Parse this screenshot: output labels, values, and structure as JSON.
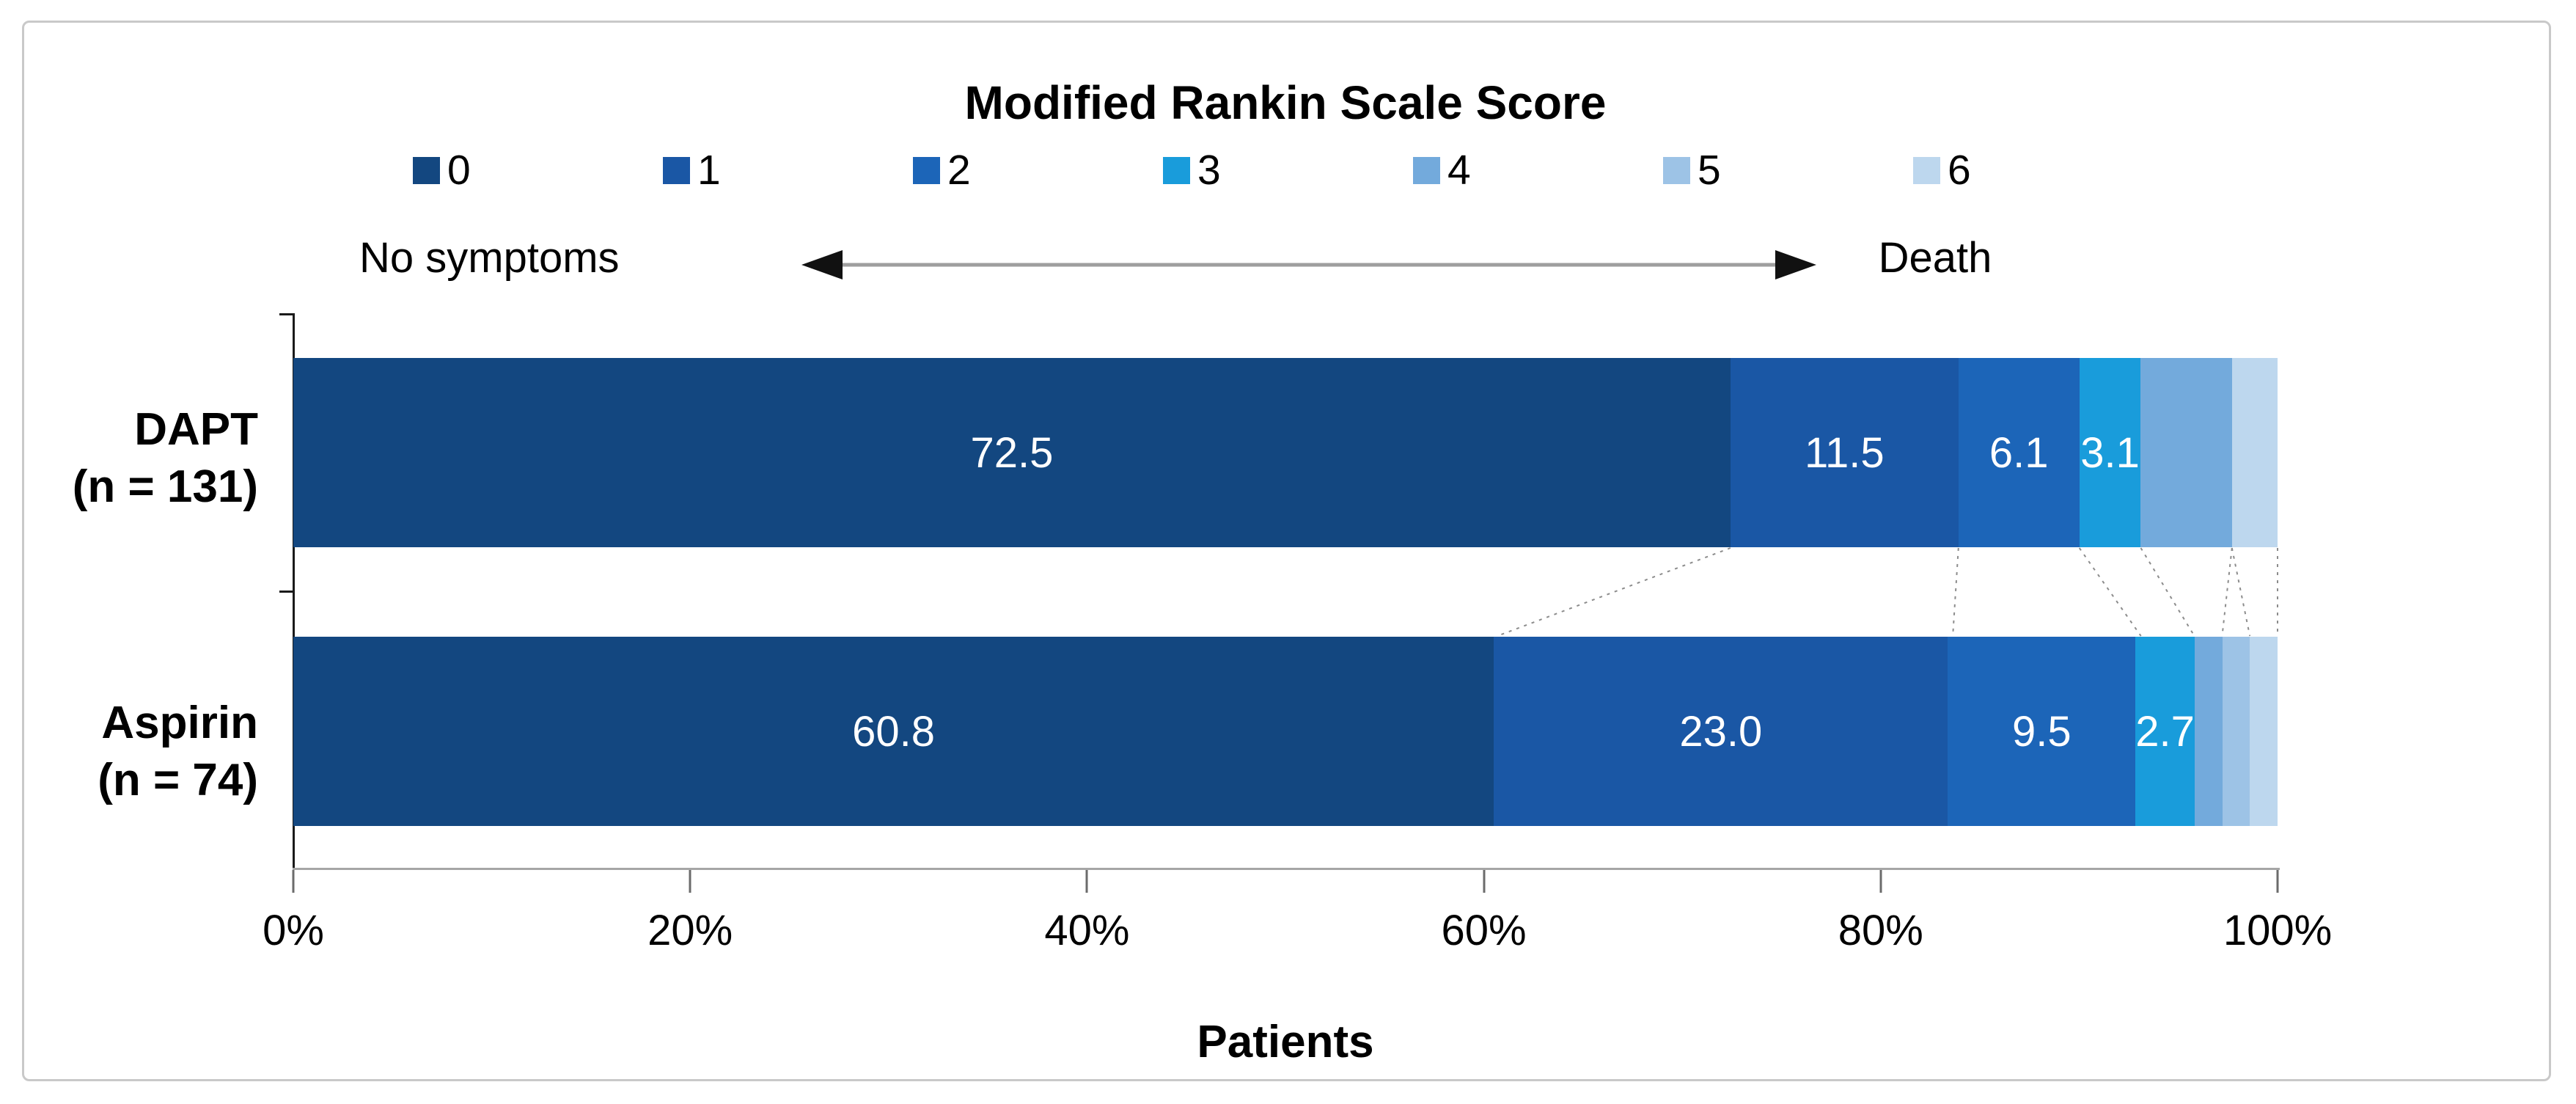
{
  "chart_data": {
    "type": "bar",
    "variant": "horizontal-stacked-100pct",
    "title": "Modified Rankin Scale Score",
    "xlabel": "Patients",
    "xlim": [
      0,
      100
    ],
    "x_ticks": [
      "0%",
      "20%",
      "40%",
      "60%",
      "80%",
      "100%"
    ],
    "grid": "off",
    "legend_position": "top",
    "annotation": {
      "left": "No symptoms",
      "right": "Death"
    },
    "categories": [
      {
        "line1": "DAPT",
        "line2": "(n = 131)"
      },
      {
        "line1": "Aspirin",
        "line2": "(n = 74)"
      }
    ],
    "series": [
      {
        "name": "0",
        "color": "#134780",
        "values": [
          72.5,
          60.8
        ],
        "labels": [
          "72.5",
          "60.8"
        ]
      },
      {
        "name": "1",
        "color": "#1A57A5",
        "values": [
          11.5,
          23.0
        ],
        "labels": [
          "11.5",
          "23.0"
        ]
      },
      {
        "name": "2",
        "color": "#1C65B8",
        "values": [
          6.1,
          9.5
        ],
        "labels": [
          "6.1",
          "9.5"
        ]
      },
      {
        "name": "3",
        "color": "#199CDB",
        "values": [
          3.1,
          2.7
        ],
        "labels": [
          "3.1",
          "2.7"
        ]
      },
      {
        "name": "4",
        "color": "#73AADC",
        "values": [
          4.6,
          1.4
        ],
        "labels": [
          "",
          ""
        ]
      },
      {
        "name": "5",
        "color": "#9DC3E6",
        "values": [
          0.0,
          1.4
        ],
        "labels": [
          "",
          ""
        ]
      },
      {
        "name": "6",
        "color": "#BDD7EE",
        "values": [
          2.3,
          1.4
        ],
        "labels": [
          "",
          ""
        ]
      }
    ]
  }
}
